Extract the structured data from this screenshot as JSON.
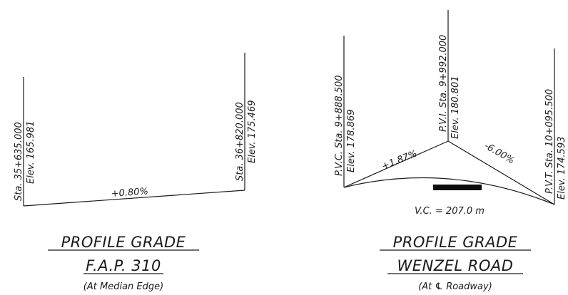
{
  "left": {
    "start_station": "Sta. 35+635.000",
    "start_elev": "Elev. 165.981",
    "end_station": "Sta. 36+820.000",
    "end_elev": "Elev. 175.469",
    "grade": "+0.80%",
    "title": "PROFILE GRADE",
    "subtitle": "F.A.P. 310",
    "note": "(At Median Edge)"
  },
  "right": {
    "pvc_station": "P.V.C. Sta. 9+888.500",
    "pvc_elev": "Elev. 178.869",
    "pvi_station": "P.V.I. Sta. 9+992.000",
    "pvi_elev": "Elev. 180.801",
    "pvt_station": "P.V.T. Sta. 10+095.500",
    "pvt_elev": "Elev. 174.593",
    "grade_in": "+1.87%",
    "grade_out": "-6.00%",
    "vc_length": "V.C. = 207.0 m",
    "title": "PROFILE GRADE",
    "subtitle": "WENZEL ROAD",
    "note": "(At ℄ Roadway)"
  }
}
